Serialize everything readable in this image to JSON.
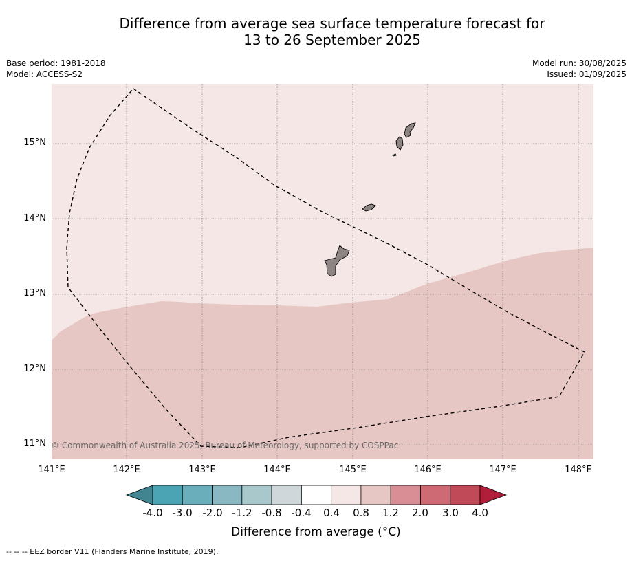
{
  "title_line1": "Difference from average sea surface temperature forecast for",
  "title_line2": "13 to 26 September 2025",
  "meta": {
    "base_period": "Base period: 1981-2018",
    "model": "Model: ACCESS-S2",
    "model_run": "Model run: 30/08/2025",
    "issued": "Issued: 01/09/2025"
  },
  "map": {
    "lat_labels": [
      "15°N",
      "14°N",
      "13°N",
      "12°N",
      "11°N"
    ],
    "lon_labels": [
      "141°E",
      "142°E",
      "143°E",
      "144°E",
      "145°E",
      "146°E",
      "147°E",
      "148°E"
    ],
    "copyright": "© Commonwealth of Australia 2025, Bureau of Meteorology, supported by COSPPac",
    "colors": {
      "class_0_4_to_0_8": "#f4e7e6",
      "class_0_8_to_1_2": "#e7c7c3",
      "land": "#8d8584"
    }
  },
  "colorbar": {
    "title": "Difference from average (°C)",
    "ticks": [
      "-4.0",
      "-3.0",
      "-2.0",
      "-1.2",
      "-0.8",
      "-0.4",
      "0.4",
      "0.8",
      "1.2",
      "2.0",
      "3.0",
      "4.0"
    ],
    "colors": [
      "#40858f",
      "#4ba4b3",
      "#6aaebc",
      "#8ab8c2",
      "#a8c8cc",
      "#d0d7da",
      "#ffffff",
      "#f4e7e6",
      "#e7c7c3",
      "#d98e95",
      "#cd6a73",
      "#c04a58",
      "#b01e3a"
    ]
  },
  "footnote": "-- -- -- EEZ border V11 (Flanders Marine Institute, 2019)."
}
